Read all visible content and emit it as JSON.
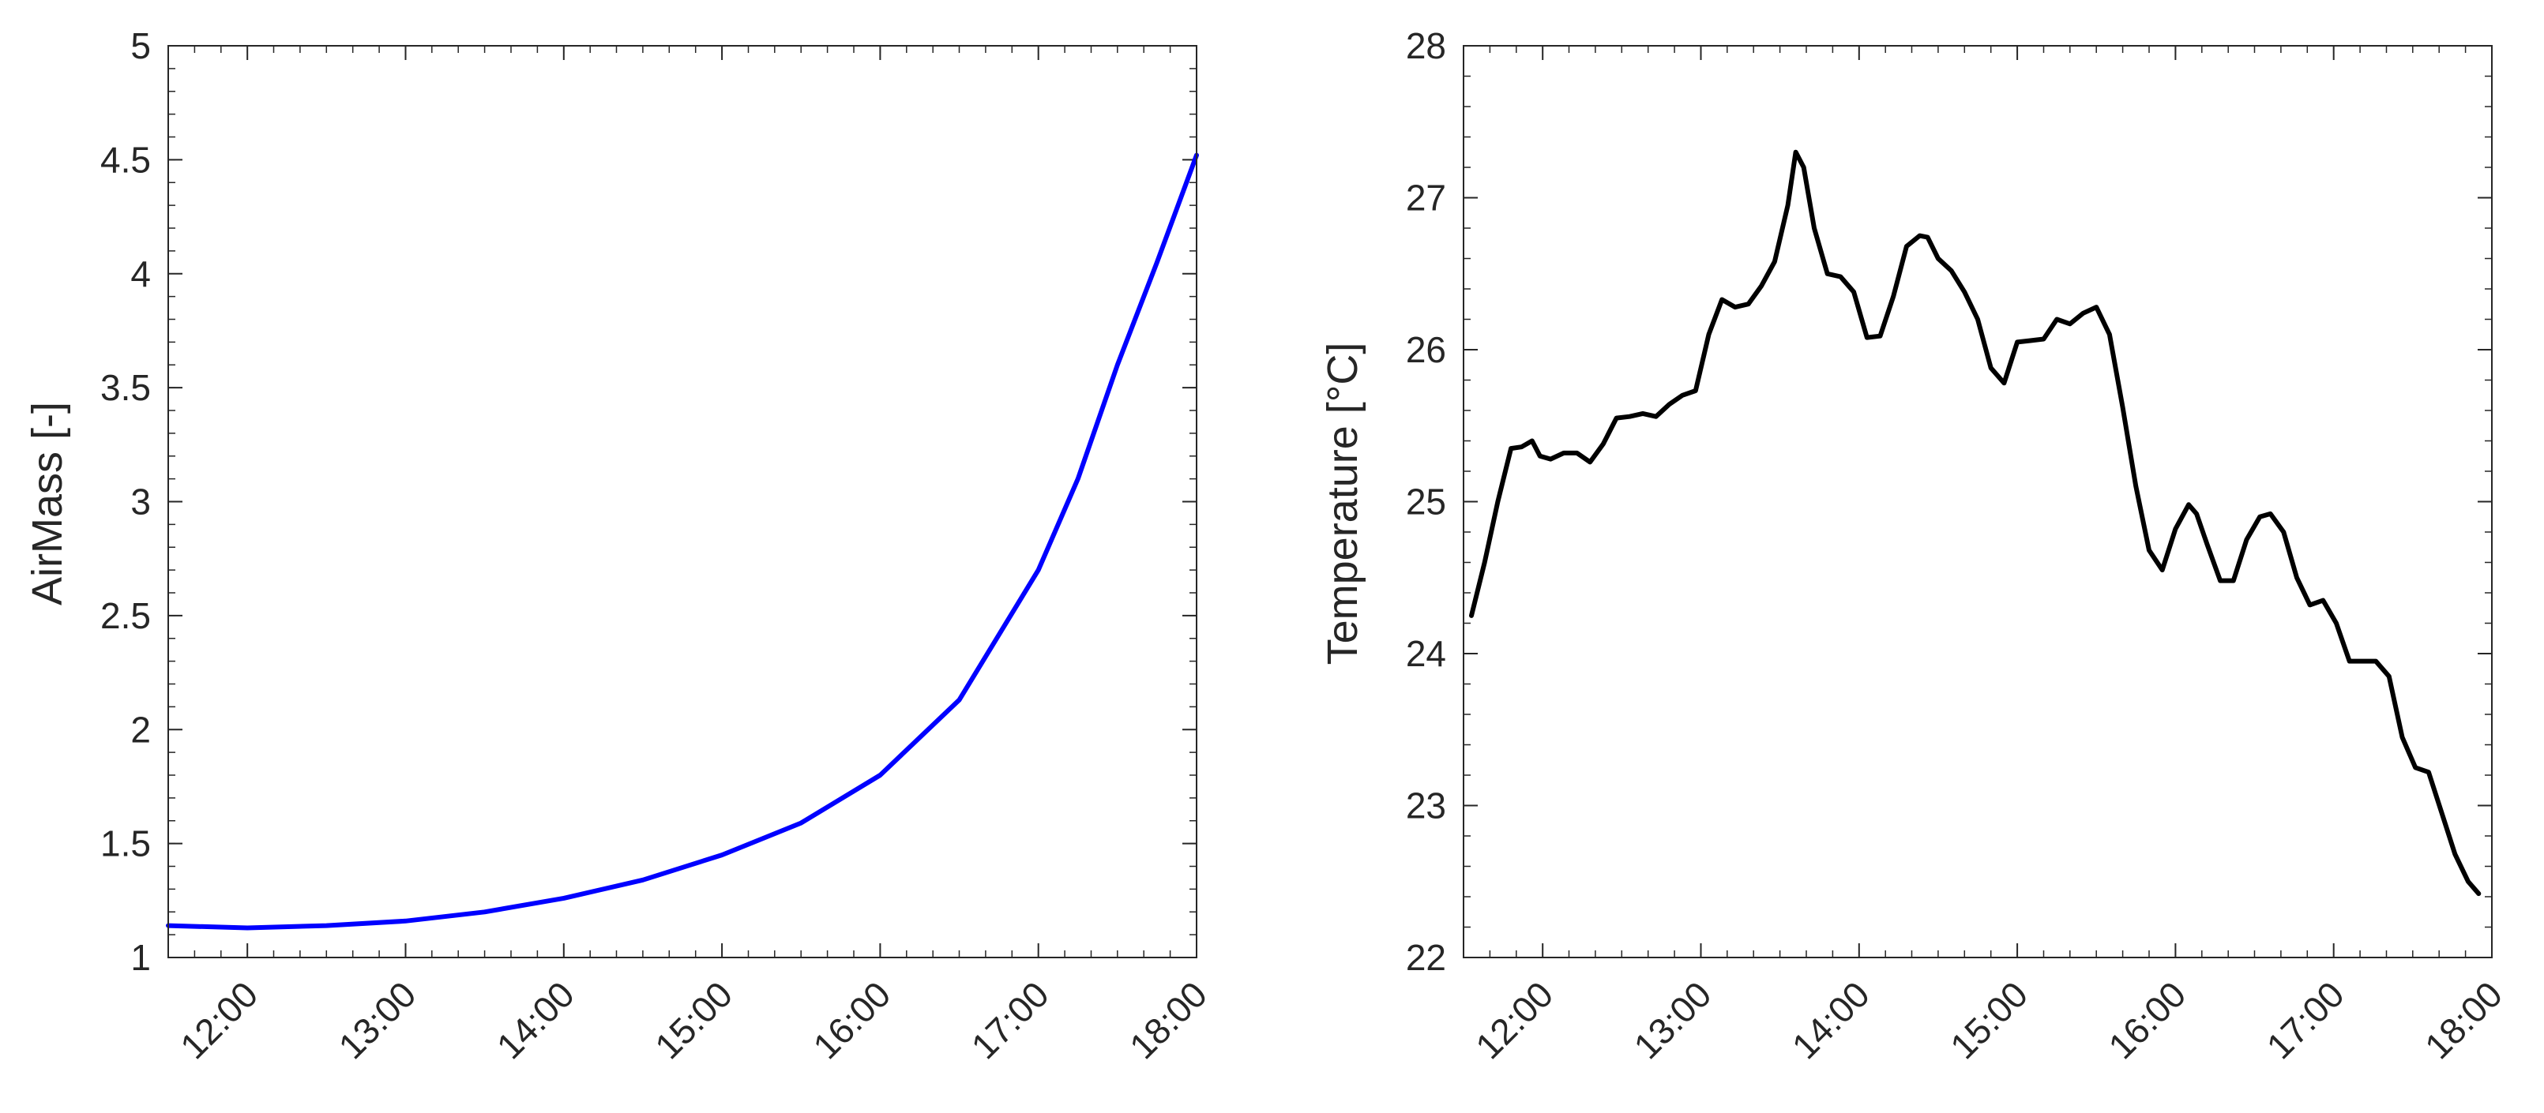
{
  "colors": {
    "airmass": "#0000ff",
    "temperature": "#000000",
    "axes": "#262626"
  },
  "chart_data": [
    {
      "type": "line",
      "title": "",
      "xlabel": "",
      "ylabel": "AirMass [-]",
      "xlim": [
        "11:30",
        "18:00"
      ],
      "ylim": [
        1,
        5
      ],
      "xticks": [
        "12:00",
        "13:00",
        "14:00",
        "15:00",
        "16:00",
        "17:00",
        "18:00"
      ],
      "yticks": [
        "1",
        "1.5",
        "2",
        "2.5",
        "3",
        "3.5",
        "4",
        "4.5",
        "5"
      ],
      "grid": false,
      "series": [
        {
          "color": "#0000ff",
          "x": [
            "11:30",
            "12:00",
            "12:30",
            "13:00",
            "13:30",
            "14:00",
            "14:30",
            "15:00",
            "15:30",
            "16:00",
            "16:30",
            "17:00",
            "17:15",
            "17:30",
            "17:45",
            "18:00"
          ],
          "y": [
            1.14,
            1.13,
            1.14,
            1.16,
            1.2,
            1.26,
            1.34,
            1.45,
            1.59,
            1.8,
            2.13,
            2.7,
            3.1,
            3.6,
            4.05,
            4.52
          ]
        }
      ]
    },
    {
      "type": "line",
      "title": "",
      "xlabel": "",
      "ylabel": "Temperature [°C]",
      "xlim": [
        "11:30",
        "18:00"
      ],
      "ylim": [
        22,
        28
      ],
      "xticks": [
        "12:00",
        "13:00",
        "14:00",
        "15:00",
        "16:00",
        "17:00",
        "18:00"
      ],
      "yticks": [
        "22",
        "23",
        "24",
        "25",
        "26",
        "27",
        "28"
      ],
      "grid": false,
      "series": [
        {
          "color": "#000000",
          "x": [
            "11:33",
            "11:38",
            "11:43",
            "11:48",
            "11:52",
            "11:56",
            "11:59",
            "12:03",
            "12:08",
            "12:13",
            "12:18",
            "12:23",
            "12:28",
            "12:33",
            "12:38",
            "12:43",
            "12:48",
            "12:53",
            "12:58",
            "13:03",
            "13:08",
            "13:13",
            "13:18",
            "13:23",
            "13:28",
            "13:33",
            "13:36",
            "13:39",
            "13:43",
            "13:48",
            "13:53",
            "13:58",
            "14:03",
            "14:08",
            "14:13",
            "14:18",
            "14:23",
            "14:26",
            "14:30",
            "14:35",
            "14:40",
            "14:45",
            "14:50",
            "14:55",
            "15:00",
            "15:05",
            "15:10",
            "15:15",
            "15:20",
            "15:25",
            "15:30",
            "15:35",
            "15:40",
            "15:45",
            "15:50",
            "15:55",
            "16:00",
            "16:05",
            "16:08",
            "16:12",
            "16:17",
            "16:22",
            "16:27",
            "16:32",
            "16:36",
            "16:41",
            "16:46",
            "16:51",
            "16:56",
            "17:01",
            "17:06",
            "17:11",
            "17:16",
            "17:21",
            "17:26",
            "17:31",
            "17:36",
            "17:41",
            "17:46",
            "17:51",
            "17:55"
          ],
          "y": [
            24.25,
            24.6,
            25.0,
            25.35,
            25.36,
            25.4,
            25.3,
            25.28,
            25.32,
            25.32,
            25.26,
            25.38,
            25.55,
            25.56,
            25.58,
            25.56,
            25.64,
            25.7,
            25.73,
            26.1,
            26.33,
            26.28,
            26.3,
            26.42,
            26.58,
            26.95,
            27.3,
            27.2,
            26.8,
            26.5,
            26.48,
            26.38,
            26.08,
            26.09,
            26.35,
            26.68,
            26.75,
            26.74,
            26.6,
            26.52,
            26.38,
            26.2,
            25.88,
            25.78,
            26.05,
            26.06,
            26.07,
            26.2,
            26.17,
            26.24,
            26.28,
            26.1,
            25.62,
            25.1,
            24.68,
            24.55,
            24.82,
            24.98,
            24.92,
            24.72,
            24.48,
            24.48,
            24.75,
            24.9,
            24.92,
            24.8,
            24.5,
            24.32,
            24.35,
            24.2,
            23.95,
            23.95,
            23.95,
            23.85,
            23.45,
            23.25,
            23.22,
            22.95,
            22.68,
            22.5,
            22.42
          ]
        }
      ]
    }
  ]
}
